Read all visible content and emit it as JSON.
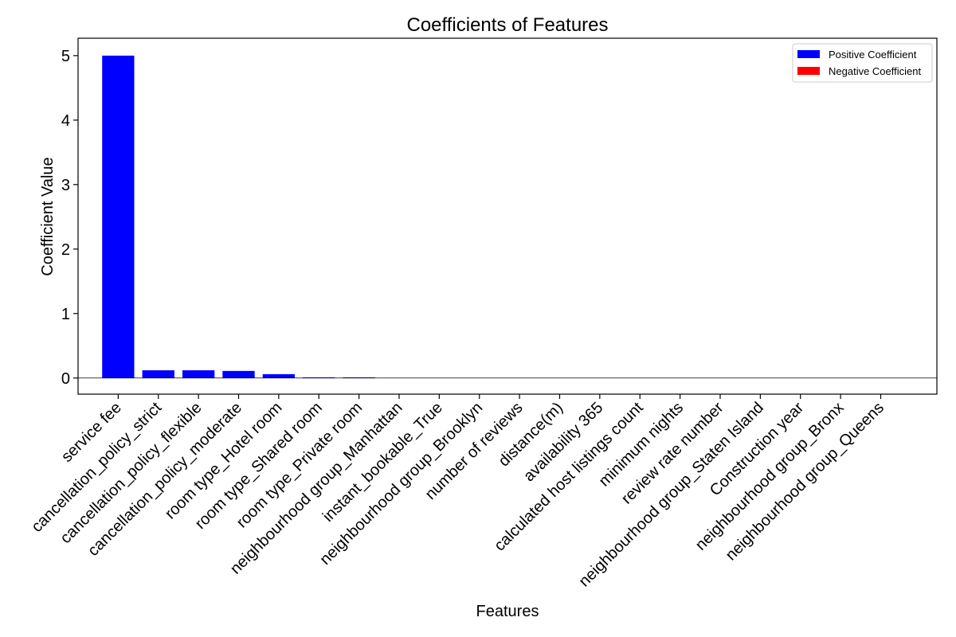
{
  "chart_data": {
    "type": "bar",
    "title": "Coefficients of Features",
    "xlabel": "Features",
    "ylabel": "Coefficient Value",
    "ylim": [
      -0.25,
      5.27
    ],
    "yticks": [
      0,
      1,
      2,
      3,
      4,
      5
    ],
    "zero_line": true,
    "grid": false,
    "legend_placement": "top-right",
    "categories": [
      "service fee",
      "cancellation_policy_strict",
      "cancellation_policy_flexible",
      "cancellation_policy_moderate",
      "room type_Hotel room",
      "room type_Shared room",
      "room type_Private room",
      "neighbourhood group_Manhattan",
      "instant_bookable_True",
      "neighbourhood group_Brooklyn",
      "number of reviews",
      "distance(m)",
      "availability 365",
      "calculated host listings count",
      "minimum nights",
      "review rate number",
      "neighbourhood group_Staten Island",
      "Construction year",
      "neighbourhood group_Bronx",
      "neighbourhood group_Queens"
    ],
    "values": [
      5.0,
      0.12,
      0.12,
      0.11,
      0.06,
      0.01,
      0.01,
      0.003,
      0.002,
      0.001,
      0.001,
      0.001,
      0.0005,
      0.0005,
      0.0005,
      0.0005,
      0.0005,
      0.0005,
      0.0005,
      0.0005
    ],
    "series": [
      {
        "name": "Positive Coefficient",
        "color": "#0000ff"
      },
      {
        "name": "Negative Coefficient",
        "color": "#ff0000"
      }
    ]
  }
}
